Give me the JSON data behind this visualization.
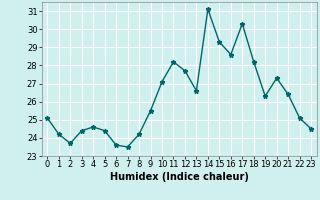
{
  "x": [
    0,
    1,
    2,
    3,
    4,
    5,
    6,
    7,
    8,
    9,
    10,
    11,
    12,
    13,
    14,
    15,
    16,
    17,
    18,
    19,
    20,
    21,
    22,
    23
  ],
  "y": [
    25.1,
    24.2,
    23.7,
    24.4,
    24.6,
    24.4,
    23.6,
    23.5,
    24.2,
    25.5,
    27.1,
    28.2,
    27.7,
    26.6,
    31.1,
    29.3,
    28.6,
    30.3,
    28.2,
    26.3,
    27.3,
    26.4,
    25.1,
    24.5
  ],
  "line_color": "#006666",
  "marker": "*",
  "marker_color": "#006666",
  "bg_color": "#d0f0f0",
  "grid_color": "#ffffff",
  "xlabel": "Humidex (Indice chaleur)",
  "ylim": [
    23,
    31.5
  ],
  "yticks": [
    23,
    24,
    25,
    26,
    27,
    28,
    29,
    30,
    31
  ],
  "xlim": [
    -0.5,
    23.5
  ],
  "xticks": [
    0,
    1,
    2,
    3,
    4,
    5,
    6,
    7,
    8,
    9,
    10,
    11,
    12,
    13,
    14,
    15,
    16,
    17,
    18,
    19,
    20,
    21,
    22,
    23
  ],
  "xlabel_fontsize": 7,
  "tick_fontsize": 6,
  "line_width": 1.0,
  "marker_size": 3.5
}
